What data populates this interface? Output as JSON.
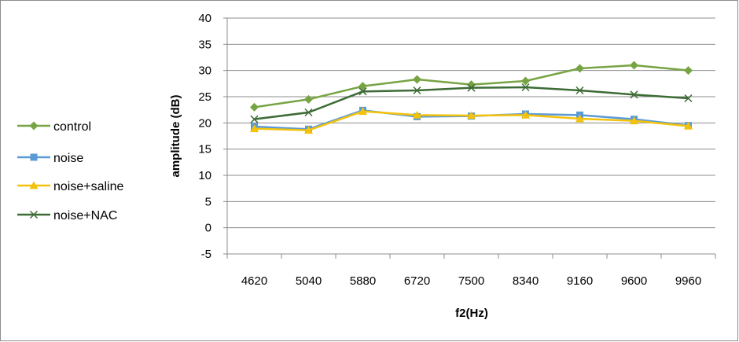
{
  "chart_data": {
    "type": "line",
    "categories": [
      "4620",
      "5040",
      "5880",
      "6720",
      "7500",
      "8340",
      "9160",
      "9600",
      "9960"
    ],
    "xlabel": "f2(Hz)",
    "ylabel": "amplitude (dB)",
    "ylim": [
      -5,
      40
    ],
    "yticks": [
      -5,
      0,
      5,
      10,
      15,
      20,
      25,
      30,
      35,
      40
    ],
    "grid": "horizontal",
    "legend": "left",
    "series": [
      {
        "name": "control",
        "color": "#77a443",
        "marker": "diamond",
        "values": [
          23,
          24.5,
          27,
          28.3,
          27.3,
          28,
          30.4,
          31,
          30
        ]
      },
      {
        "name": "noise",
        "color": "#5b9bd5",
        "marker": "square",
        "values": [
          19.3,
          18.8,
          22.4,
          21.2,
          21.3,
          21.7,
          21.5,
          20.7,
          19.5
        ]
      },
      {
        "name": "noise+saline",
        "color": "#f2c20d",
        "marker": "triangle",
        "values": [
          18.9,
          18.6,
          22.2,
          21.5,
          21.4,
          21.5,
          20.8,
          20.4,
          19.4
        ]
      },
      {
        "name": "noise+NAC",
        "color": "#3d6b35",
        "marker": "x",
        "values": [
          20.7,
          22,
          26,
          26.2,
          26.7,
          26.8,
          26.2,
          25.4,
          24.7
        ]
      }
    ]
  }
}
